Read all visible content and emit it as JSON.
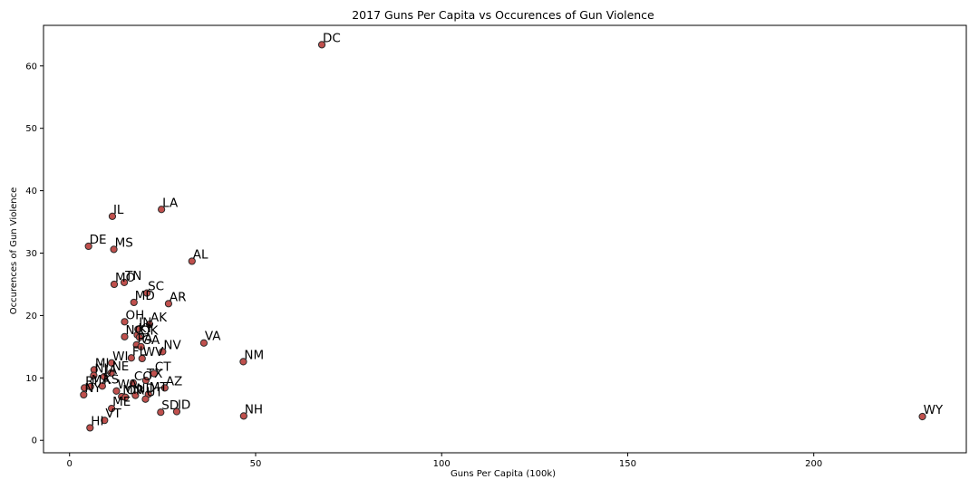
{
  "chart_data": {
    "type": "scatter",
    "title": "2017 Guns Per Capita vs Occurences of Gun Violence",
    "xlabel": "Guns Per Capita (100k)",
    "ylabel": "Occurences of Gun Violence",
    "xlim": [
      -7,
      241
    ],
    "ylim": [
      -2,
      66.5
    ],
    "xticks": [
      0,
      50,
      100,
      150,
      200
    ],
    "yticks": [
      0,
      10,
      20,
      30,
      40,
      50,
      60
    ],
    "grid": false,
    "legend": "none",
    "marker_color": "#c0504d",
    "marker_edge": "#2b2b2b",
    "points": [
      {
        "label": "DC",
        "x": 67.8,
        "y": 63.4
      },
      {
        "label": "LA",
        "x": 24.7,
        "y": 37.0
      },
      {
        "label": "IL",
        "x": 11.5,
        "y": 35.9
      },
      {
        "label": "DE",
        "x": 5.1,
        "y": 31.1
      },
      {
        "label": "MS",
        "x": 11.9,
        "y": 30.6
      },
      {
        "label": "AL",
        "x": 32.9,
        "y": 28.7
      },
      {
        "label": "MO",
        "x": 12.0,
        "y": 25.0
      },
      {
        "label": "TN",
        "x": 14.7,
        "y": 25.3
      },
      {
        "label": "SC",
        "x": 20.8,
        "y": 23.6
      },
      {
        "label": "MD",
        "x": 17.3,
        "y": 22.1
      },
      {
        "label": "AR",
        "x": 26.6,
        "y": 21.9
      },
      {
        "label": "OH",
        "x": 14.8,
        "y": 19.0
      },
      {
        "label": "AK",
        "x": 21.5,
        "y": 18.6
      },
      {
        "label": "IN",
        "x": 18.4,
        "y": 17.8
      },
      {
        "label": "NC",
        "x": 14.8,
        "y": 16.6
      },
      {
        "label": "KY",
        "x": 18.2,
        "y": 16.9
      },
      {
        "label": "OK",
        "x": 18.8,
        "y": 16.5
      },
      {
        "label": "PA",
        "x": 18.0,
        "y": 15.3
      },
      {
        "label": "GA",
        "x": 19.2,
        "y": 15.0
      },
      {
        "label": "VA",
        "x": 36.1,
        "y": 15.6
      },
      {
        "label": "FL",
        "x": 16.6,
        "y": 13.2
      },
      {
        "label": "WV",
        "x": 19.5,
        "y": 13.1
      },
      {
        "label": "NV",
        "x": 25.0,
        "y": 14.2
      },
      {
        "label": "NM",
        "x": 46.7,
        "y": 12.6
      },
      {
        "label": "WI",
        "x": 11.3,
        "y": 12.4
      },
      {
        "label": "MI",
        "x": 6.6,
        "y": 11.3
      },
      {
        "label": "NJ",
        "x": 6.5,
        "y": 10.4
      },
      {
        "label": "NE",
        "x": 11.2,
        "y": 10.8
      },
      {
        "label": "IA",
        "x": 9.3,
        "y": 10.2
      },
      {
        "label": "CT",
        "x": 22.7,
        "y": 10.7
      },
      {
        "label": "CO",
        "x": 17.1,
        "y": 9.2
      },
      {
        "label": "TX",
        "x": 20.5,
        "y": 9.6
      },
      {
        "label": "RI",
        "x": 4.0,
        "y": 8.4
      },
      {
        "label": "MA",
        "x": 5.6,
        "y": 8.6
      },
      {
        "label": "KS",
        "x": 8.8,
        "y": 8.7
      },
      {
        "label": "AZ",
        "x": 25.6,
        "y": 8.4
      },
      {
        "label": "NY",
        "x": 3.8,
        "y": 7.3
      },
      {
        "label": "WA",
        "x": 12.6,
        "y": 7.9
      },
      {
        "label": "MN",
        "x": 14.0,
        "y": 7.0
      },
      {
        "label": "OR",
        "x": 15.0,
        "y": 6.9
      },
      {
        "label": "ND",
        "x": 17.7,
        "y": 7.2
      },
      {
        "label": "MT",
        "x": 21.2,
        "y": 7.4
      },
      {
        "label": "UT",
        "x": 20.4,
        "y": 6.6
      },
      {
        "label": "ME",
        "x": 11.3,
        "y": 5.1
      },
      {
        "label": "SD",
        "x": 24.5,
        "y": 4.5
      },
      {
        "label": "ID",
        "x": 28.8,
        "y": 4.6
      },
      {
        "label": "NH",
        "x": 46.8,
        "y": 3.9
      },
      {
        "label": "VT",
        "x": 9.4,
        "y": 3.2
      },
      {
        "label": "HI",
        "x": 5.5,
        "y": 2.0
      },
      {
        "label": "WY",
        "x": 229.2,
        "y": 3.8
      }
    ]
  }
}
